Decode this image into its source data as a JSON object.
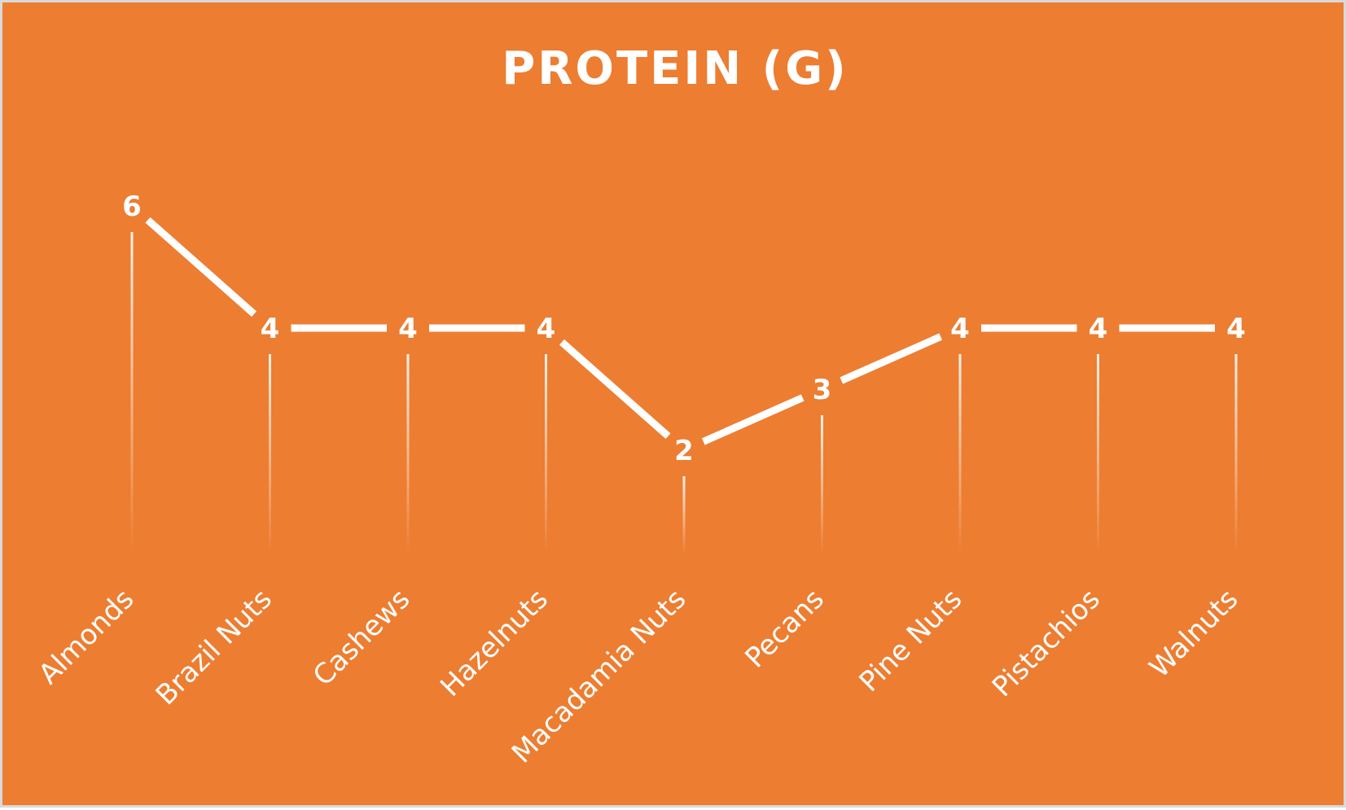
{
  "chart_data": {
    "type": "line",
    "title": "PROTEIN (G)",
    "xlabel": "",
    "ylabel": "",
    "categories": [
      "Almonds",
      "Brazil Nuts",
      "Cashews",
      "Hazelnuts",
      "Macadamia Nuts",
      "Pecans",
      "Pine Nuts",
      "Pistachios",
      "Walnuts"
    ],
    "series": [
      {
        "values": [
          6,
          4,
          4,
          4,
          2,
          3,
          4,
          4,
          4
        ]
      }
    ],
    "ylim": [
      0,
      6
    ],
    "grid": false,
    "legend": "none",
    "drop_lines": true,
    "data_labels": true
  },
  "colors": {
    "background": "#ed7d31",
    "line": "#ffffff",
    "text": "#ffffff",
    "frame_border": "#d9d9d9"
  }
}
